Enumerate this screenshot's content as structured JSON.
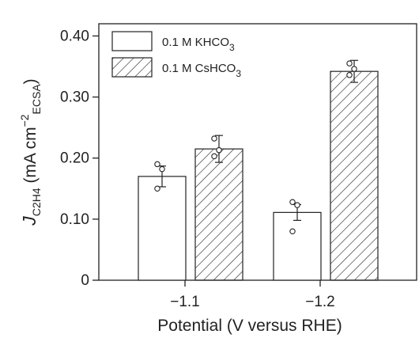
{
  "chart_data": {
    "type": "bar",
    "title": "",
    "xlabel": "Potential (V versus RHE)",
    "ylabel": {
      "main": "J",
      "main_sub": "C2H4",
      "unit_open": " (mA cm",
      "unit_sup": "−2",
      "unit_sub": "ECSA",
      "unit_close": ")"
    },
    "categories": [
      "−1.1",
      "−1.2"
    ],
    "ylim": [
      0,
      0.42
    ],
    "yticks": [
      "0",
      "0.10",
      "0.20",
      "0.30",
      "0.40"
    ],
    "ytick_values": [
      0,
      0.1,
      0.2,
      0.3,
      0.4
    ],
    "legend_position": "top-left",
    "series": [
      {
        "name": "0.1 M KHCO3",
        "legend_main": "0.1 M KHCO",
        "legend_sub": "3",
        "fill": "open",
        "values": [
          0.17,
          0.111
        ],
        "errors": [
          0.017,
          0.013
        ],
        "points": [
          [
            0.19,
            0.182,
            0.15
          ],
          [
            0.128,
            0.123,
            0.08
          ]
        ]
      },
      {
        "name": "0.1 M CsHCO3",
        "legend_main": "0.1 M CsHCO",
        "legend_sub": "3",
        "fill": "hatched",
        "values": [
          0.215,
          0.342
        ],
        "errors": [
          0.022,
          0.018
        ],
        "points": [
          [
            0.232,
            0.213,
            0.203
          ],
          [
            0.355,
            0.346,
            0.336
          ]
        ]
      }
    ]
  }
}
